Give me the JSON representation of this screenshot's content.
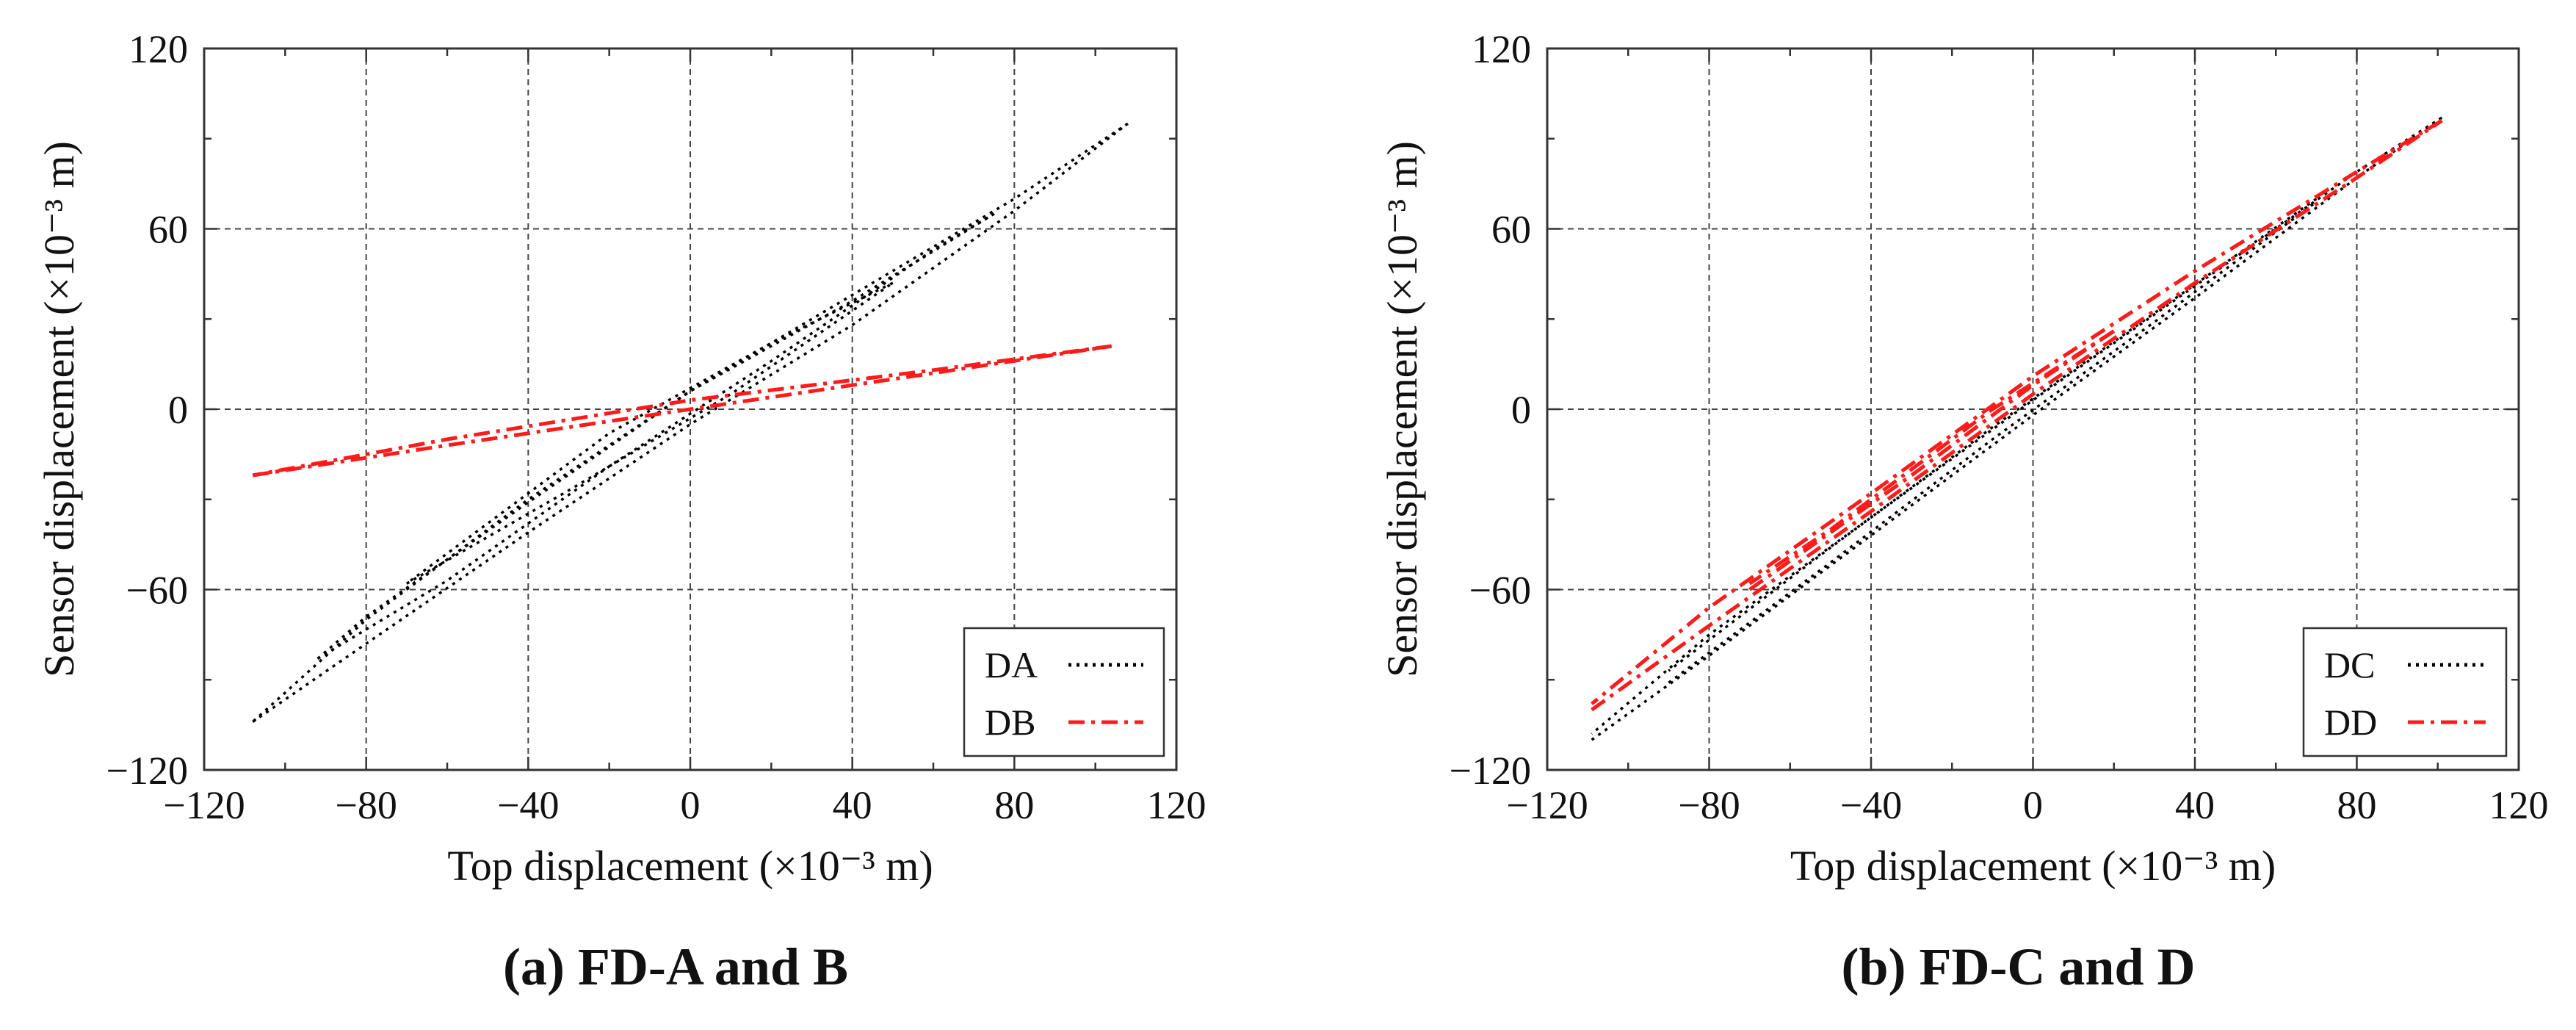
{
  "chart_data": [
    {
      "type": "line",
      "caption": "(a) FD-A and B",
      "xlabel": "Top displacement (×10⁻³ m)",
      "ylabel": "Sensor displacement (×10⁻³ m)",
      "xlim": [
        -120,
        120
      ],
      "ylim": [
        -120,
        120
      ],
      "xticks": [
        -120,
        -80,
        -40,
        0,
        40,
        80,
        120
      ],
      "yticks": [
        -120,
        -60,
        0,
        60,
        120
      ],
      "xtick_labels": [
        "−120",
        "−80",
        "−40",
        "0",
        "40",
        "80",
        "120"
      ],
      "ytick_labels": [
        "−120",
        "−60",
        "0",
        "60",
        "120"
      ],
      "grid": true,
      "legend_position": "bottom-right",
      "series": [
        {
          "name": "DA",
          "color": "#000000",
          "style": "dotted",
          "loops": [
            {
              "x": [
                -108,
                -80,
                -40,
                0,
                40,
                80,
                108
              ],
              "y": [
                -104,
                -78,
                -41,
                -5,
                28,
                66,
                95
              ]
            },
            {
              "x": [
                108,
                80,
                40,
                0,
                -40,
                -80,
                -108
              ],
              "y": [
                95,
                70,
                38,
                6,
                -30,
                -70,
                -104
              ]
            },
            {
              "x": [
                -92,
                -60,
                -20,
                20,
                60,
                75
              ],
              "y": [
                -83,
                -57,
                -19,
                16,
                53,
                65
              ]
            },
            {
              "x": [
                75,
                40,
                0,
                -40,
                -80,
                -92
              ],
              "y": [
                65,
                36,
                6,
                -31,
                -69,
                -83
              ]
            },
            {
              "x": [
                -70,
                -30,
                10,
                50
              ],
              "y": [
                -58,
                -27,
                5,
                42
              ]
            },
            {
              "x": [
                50,
                20,
                -20,
                -70
              ],
              "y": [
                42,
                22,
                -8,
                -58
              ]
            }
          ]
        },
        {
          "name": "DB",
          "color": "#ff1a1a",
          "style": "dashdot",
          "loops": [
            {
              "x": [
                -108,
                -60,
                0,
                60,
                104
              ],
              "y": [
                -22,
                -12,
                0,
                12,
                21
              ]
            },
            {
              "x": [
                104,
                60,
                0,
                -60,
                -108
              ],
              "y": [
                21,
                13,
                3,
                -10,
                -22
              ]
            }
          ]
        }
      ]
    },
    {
      "type": "line",
      "caption": "(b) FD-C and D",
      "xlabel": "Top displacement (×10⁻³ m)",
      "ylabel": "Sensor displacement (×10⁻³ m)",
      "xlim": [
        -120,
        120
      ],
      "ylim": [
        -120,
        120
      ],
      "xticks": [
        -120,
        -80,
        -40,
        0,
        40,
        80,
        120
      ],
      "yticks": [
        -120,
        -60,
        0,
        60,
        120
      ],
      "xtick_labels": [
        "−120",
        "−80",
        "−40",
        "0",
        "40",
        "80",
        "120"
      ],
      "ytick_labels": [
        "−120",
        "−60",
        "0",
        "60",
        "120"
      ],
      "grid": true,
      "legend_position": "bottom-right",
      "series": [
        {
          "name": "DC",
          "color": "#000000",
          "style": "dotted",
          "loops": [
            {
              "x": [
                -109,
                -80,
                -40,
                0,
                40,
                80,
                101
              ],
              "y": [
                -110,
                -82,
                -42,
                -2,
                37,
                77,
                97
              ]
            },
            {
              "x": [
                101,
                80,
                40,
                0,
                -40,
                -80,
                -109
              ],
              "y": [
                97,
                79,
                41,
                3,
                -36,
                -75,
                -108
              ]
            },
            {
              "x": [
                -90,
                -50,
                -10,
                30,
                70
              ],
              "y": [
                -91,
                -51,
                -10,
                29,
                69
              ]
            },
            {
              "x": [
                70,
                30,
                -10,
                -50,
                -90
              ],
              "y": [
                70,
                32,
                -6,
                -46,
                -87
              ]
            }
          ]
        },
        {
          "name": "DD",
          "color": "#ff1a1a",
          "style": "dashdot",
          "loops": [
            {
              "x": [
                -109,
                -80,
                -40,
                0,
                40,
                80,
                101
              ],
              "y": [
                -100,
                -72,
                -34,
                5,
                42,
                77,
                96
              ]
            },
            {
              "x": [
                101,
                80,
                40,
                0,
                -40,
                -80,
                -109
              ],
              "y": [
                96,
                79,
                46,
                11,
                -28,
                -66,
                -98
              ]
            },
            {
              "x": [
                -70,
                -30,
                0,
                20
              ],
              "y": [
                -60,
                -22,
                8,
                26
              ]
            },
            {
              "x": [
                20,
                -10,
                -50,
                -70
              ],
              "y": [
                26,
                0,
                -40,
                -58
              ]
            }
          ]
        }
      ]
    }
  ]
}
